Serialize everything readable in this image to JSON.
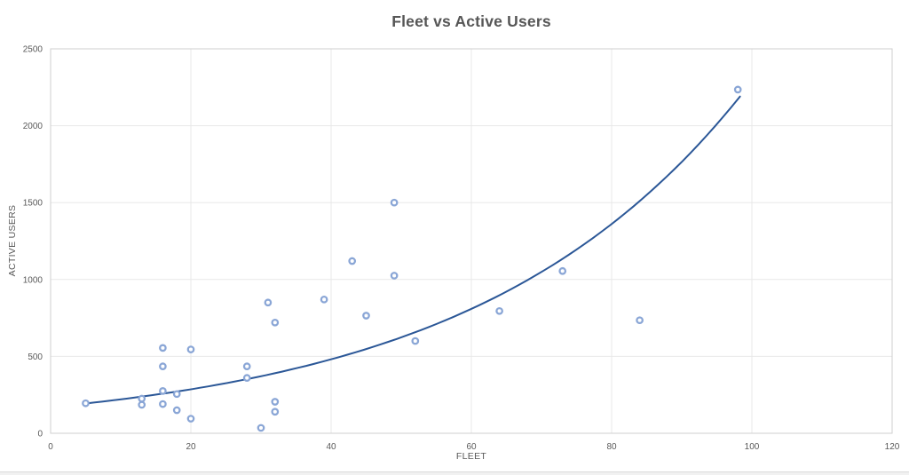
{
  "chart_data": {
    "type": "scatter",
    "title": "Fleet vs Active Users",
    "xlabel": "FLEET",
    "ylabel": "ACTIVE USERS",
    "xlim": [
      0,
      120
    ],
    "ylim": [
      0,
      2500
    ],
    "x_ticks": [
      0,
      20,
      40,
      60,
      80,
      100,
      120
    ],
    "y_ticks": [
      0,
      500,
      1000,
      1500,
      2000,
      2500
    ],
    "grid": true,
    "legend": false,
    "points": [
      [
        5,
        195
      ],
      [
        13,
        225
      ],
      [
        13,
        185
      ],
      [
        16,
        555
      ],
      [
        16,
        435
      ],
      [
        16,
        275
      ],
      [
        16,
        190
      ],
      [
        18,
        255
      ],
      [
        18,
        150
      ],
      [
        20,
        545
      ],
      [
        20,
        95
      ],
      [
        28,
        435
      ],
      [
        28,
        360
      ],
      [
        30,
        35
      ],
      [
        31,
        850
      ],
      [
        32,
        720
      ],
      [
        32,
        205
      ],
      [
        32,
        140
      ],
      [
        39,
        870
      ],
      [
        43,
        1120
      ],
      [
        45,
        765
      ],
      [
        49,
        1500
      ],
      [
        49,
        1025
      ],
      [
        52,
        600
      ],
      [
        64,
        795
      ],
      [
        73,
        1055
      ],
      [
        84,
        735
      ],
      [
        98,
        2235
      ]
    ],
    "trendline": {
      "type": "exponential",
      "a": 170,
      "b": 0.026,
      "x_start": 5,
      "x_end": 98.3
    },
    "colors": {
      "marker": "#8aa6d6",
      "marker_fill": "#ffffff",
      "trendline": "#2b5797",
      "gridline": "#e8e8e8",
      "plot_border": "#cfcfcf",
      "axis_text": "#595959",
      "title_text": "#565656"
    }
  }
}
